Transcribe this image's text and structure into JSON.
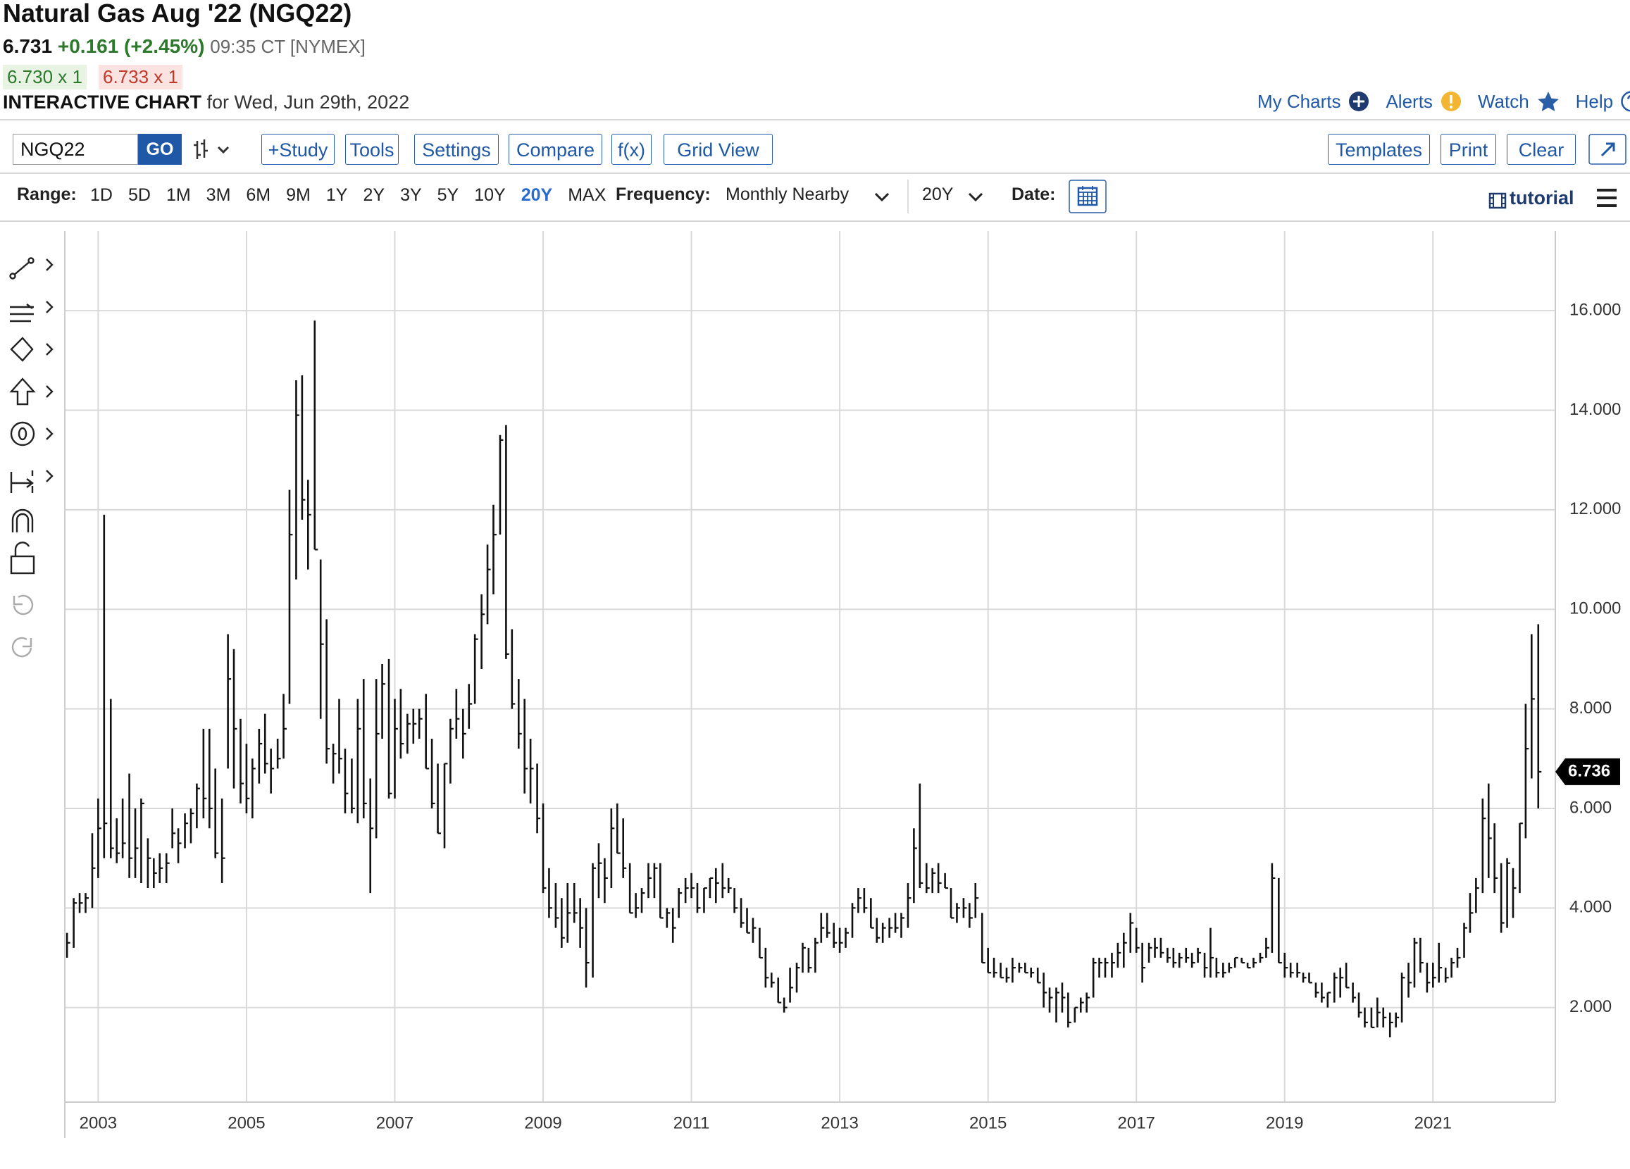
{
  "header": {
    "title": "Natural Gas Aug '22 (NGQ22)",
    "price": "6.731",
    "change": "+0.161 (+2.45%)",
    "time": "09:35 CT [NYMEX]",
    "bid": "6.730 x 1",
    "ask": "6.733 x 1",
    "chart_label": "INTERACTIVE CHART",
    "chart_date": "for Wed, Jun 29th, 2022"
  },
  "links": [
    "My Charts",
    "Alerts",
    "Watch",
    "Help"
  ],
  "toolbar": {
    "symbol": "NGQ22",
    "go": "GO",
    "buttons": [
      "+Study",
      "Tools",
      "Settings",
      "Compare",
      "f(x)",
      "Grid View"
    ],
    "right_buttons": [
      "Templates",
      "Print",
      "Clear"
    ]
  },
  "range_bar": {
    "range_label": "Range:",
    "ranges": [
      "1D",
      "5D",
      "1M",
      "3M",
      "6M",
      "9M",
      "1Y",
      "2Y",
      "3Y",
      "5Y",
      "10Y",
      "20Y",
      "MAX"
    ],
    "selected_range": "20Y",
    "frequency_label": "Frequency:",
    "frequency": "Monthly Nearby",
    "period": "20Y",
    "date_label": "Date:",
    "tutorial": "tutorial"
  },
  "chart_data": {
    "type": "ohlc",
    "color": "#111111",
    "grid": true,
    "xlim": [
      2002.55,
      2022.65
    ],
    "xticks": [
      2003,
      2005,
      2007,
      2009,
      2011,
      2013,
      2015,
      2017,
      2019,
      2021
    ],
    "ylim": [
      0.1,
      17.6
    ],
    "yticks": [
      {
        "value": 2,
        "label": "2.000"
      },
      {
        "value": 4,
        "label": "4.000"
      },
      {
        "value": 6,
        "label": "6.000"
      },
      {
        "value": 8,
        "label": "8.000"
      },
      {
        "value": 10,
        "label": "10.000"
      },
      {
        "value": 12,
        "label": "12.000"
      },
      {
        "value": 14,
        "label": "14.000"
      },
      {
        "value": 16,
        "label": "16.000"
      }
    ],
    "x": [
      2002.58,
      2002.67,
      2002.75,
      2002.83,
      2002.92,
      2003,
      2003.08,
      2003.17,
      2003.25,
      2003.33,
      2003.42,
      2003.5,
      2003.58,
      2003.67,
      2003.75,
      2003.83,
      2003.92,
      2004,
      2004.08,
      2004.17,
      2004.25,
      2004.33,
      2004.42,
      2004.5,
      2004.58,
      2004.67,
      2004.75,
      2004.83,
      2004.92,
      2005,
      2005.08,
      2005.17,
      2005.25,
      2005.33,
      2005.42,
      2005.5,
      2005.58,
      2005.67,
      2005.75,
      2005.83,
      2005.92,
      2006,
      2006.08,
      2006.17,
      2006.25,
      2006.33,
      2006.42,
      2006.5,
      2006.58,
      2006.67,
      2006.75,
      2006.83,
      2006.92,
      2007,
      2007.08,
      2007.17,
      2007.25,
      2007.33,
      2007.42,
      2007.5,
      2007.58,
      2007.67,
      2007.75,
      2007.83,
      2007.92,
      2008,
      2008.08,
      2008.17,
      2008.25,
      2008.33,
      2008.42,
      2008.5,
      2008.58,
      2008.67,
      2008.75,
      2008.83,
      2008.92,
      2009,
      2009.08,
      2009.17,
      2009.25,
      2009.33,
      2009.42,
      2009.5,
      2009.58,
      2009.67,
      2009.75,
      2009.83,
      2009.92,
      2010,
      2010.08,
      2010.17,
      2010.25,
      2010.33,
      2010.42,
      2010.5,
      2010.58,
      2010.67,
      2010.75,
      2010.83,
      2010.92,
      2011,
      2011.08,
      2011.17,
      2011.25,
      2011.33,
      2011.42,
      2011.5,
      2011.58,
      2011.67,
      2011.75,
      2011.83,
      2011.92,
      2012,
      2012.08,
      2012.17,
      2012.25,
      2012.33,
      2012.42,
      2012.5,
      2012.58,
      2012.67,
      2012.75,
      2012.83,
      2012.92,
      2013,
      2013.08,
      2013.17,
      2013.25,
      2013.33,
      2013.42,
      2013.5,
      2013.58,
      2013.67,
      2013.75,
      2013.83,
      2013.92,
      2014,
      2014.08,
      2014.17,
      2014.25,
      2014.33,
      2014.42,
      2014.5,
      2014.58,
      2014.67,
      2014.75,
      2014.83,
      2014.92,
      2015,
      2015.08,
      2015.17,
      2015.25,
      2015.33,
      2015.42,
      2015.5,
      2015.58,
      2015.67,
      2015.75,
      2015.83,
      2015.92,
      2016,
      2016.08,
      2016.17,
      2016.25,
      2016.33,
      2016.42,
      2016.5,
      2016.58,
      2016.67,
      2016.75,
      2016.83,
      2016.92,
      2017,
      2017.08,
      2017.17,
      2017.25,
      2017.33,
      2017.42,
      2017.5,
      2017.58,
      2017.67,
      2017.75,
      2017.83,
      2017.92,
      2018,
      2018.08,
      2018.17,
      2018.25,
      2018.33,
      2018.42,
      2018.5,
      2018.58,
      2018.67,
      2018.75,
      2018.83,
      2018.92,
      2019,
      2019.08,
      2019.17,
      2019.25,
      2019.33,
      2019.42,
      2019.5,
      2019.58,
      2019.67,
      2019.75,
      2019.83,
      2019.92,
      2020,
      2020.08,
      2020.17,
      2020.25,
      2020.33,
      2020.42,
      2020.5,
      2020.58,
      2020.67,
      2020.75,
      2020.83,
      2020.92,
      2021,
      2021.08,
      2021.17,
      2021.25,
      2021.33,
      2021.42,
      2021.5,
      2021.58,
      2021.67,
      2021.75,
      2021.83,
      2021.92,
      2022,
      2022.08,
      2022.17,
      2022.25,
      2022.33,
      2022.42
    ],
    "high": [
      3.5,
      4.2,
      4.3,
      4.3,
      5.5,
      6.2,
      11.9,
      8.2,
      5.8,
      6.2,
      6.7,
      6.0,
      6.2,
      5.4,
      5.0,
      5.1,
      5.1,
      6.0,
      5.6,
      5.9,
      6.0,
      6.5,
      7.6,
      7.6,
      6.8,
      6.2,
      9.5,
      9.2,
      7.8,
      7.3,
      7.0,
      7.6,
      7.9,
      7.2,
      7.4,
      8.3,
      12.4,
      14.6,
      14.7,
      12.6,
      15.8,
      11.0,
      9.8,
      7.3,
      8.2,
      7.2,
      7.0,
      8.2,
      8.6,
      6.6,
      8.6,
      8.9,
      9.0,
      8.2,
      8.4,
      7.9,
      8.0,
      8.0,
      8.3,
      7.4,
      6.9,
      6.9,
      7.8,
      8.4,
      8.0,
      8.5,
      9.5,
      10.3,
      11.3,
      12.1,
      13.5,
      13.7,
      9.6,
      8.6,
      8.2,
      7.4,
      6.9,
      6.1,
      4.8,
      4.5,
      4.2,
      4.5,
      4.5,
      4.2,
      4.0,
      4.9,
      5.3,
      5.0,
      6.0,
      6.1,
      5.8,
      4.9,
      4.3,
      4.4,
      4.9,
      4.9,
      4.9,
      4.0,
      4.0,
      4.4,
      4.6,
      4.7,
      4.5,
      4.4,
      4.6,
      4.8,
      4.9,
      4.6,
      4.4,
      4.2,
      4.0,
      3.8,
      3.6,
      3.2,
      2.7,
      2.6,
      2.2,
      2.8,
      2.9,
      3.3,
      3.2,
      3.4,
      3.9,
      3.9,
      3.7,
      3.6,
      3.6,
      4.1,
      4.4,
      4.4,
      4.2,
      3.8,
      3.7,
      3.8,
      3.9,
      3.9,
      4.5,
      5.6,
      6.5,
      4.9,
      4.8,
      4.9,
      4.7,
      4.4,
      4.1,
      4.2,
      4.1,
      4.5,
      3.9,
      3.2,
      3.0,
      2.9,
      2.8,
      3.0,
      2.9,
      2.9,
      2.8,
      2.8,
      2.7,
      2.4,
      2.4,
      2.5,
      2.3,
      2.0,
      2.2,
      2.3,
      3.0,
      3.0,
      3.0,
      3.1,
      3.3,
      3.5,
      3.9,
      3.6,
      3.3,
      3.3,
      3.4,
      3.4,
      3.2,
      3.2,
      3.1,
      3.2,
      3.1,
      3.2,
      3.1,
      3.6,
      3.0,
      2.9,
      2.9,
      3.0,
      3.0,
      2.9,
      3.0,
      3.1,
      3.4,
      4.9,
      4.6,
      3.1,
      2.9,
      2.9,
      2.7,
      2.7,
      2.5,
      2.5,
      2.3,
      2.7,
      2.8,
      2.9,
      2.5,
      2.3,
      2.0,
      2.0,
      2.2,
      2.0,
      1.9,
      1.9,
      2.7,
      2.9,
      3.4,
      3.4,
      2.9,
      2.9,
      3.3,
      2.8,
      3.0,
      3.2,
      3.7,
      4.3,
      4.6,
      6.2,
      6.5,
      5.7,
      4.9,
      5.0,
      4.8,
      5.7,
      8.1,
      9.5,
      9.7
    ],
    "low": [
      3.0,
      3.2,
      3.9,
      3.9,
      4.0,
      4.6,
      5.0,
      5.0,
      4.9,
      5.0,
      4.6,
      4.6,
      4.5,
      4.4,
      4.4,
      4.5,
      4.5,
      5.2,
      4.9,
      5.2,
      5.3,
      5.6,
      5.8,
      5.6,
      5.0,
      4.5,
      6.8,
      6.4,
      6.1,
      5.9,
      5.8,
      6.5,
      6.7,
      6.3,
      6.8,
      7.0,
      8.1,
      10.6,
      11.8,
      10.8,
      11.2,
      7.8,
      6.9,
      6.5,
      6.7,
      5.9,
      5.9,
      5.7,
      5.8,
      4.3,
      5.4,
      7.4,
      6.2,
      6.2,
      7.0,
      7.1,
      7.3,
      7.4,
      6.8,
      6.0,
      5.5,
      5.2,
      6.5,
      7.4,
      7.0,
      7.6,
      8.1,
      8.8,
      9.7,
      10.3,
      11.5,
      9.0,
      8.0,
      7.2,
      6.3,
      6.1,
      5.5,
      4.3,
      3.8,
      3.6,
      3.2,
      3.3,
      3.7,
      3.2,
      2.4,
      2.6,
      4.2,
      4.1,
      4.4,
      5.1,
      4.6,
      3.9,
      3.8,
      3.9,
      4.2,
      4.2,
      3.8,
      3.6,
      3.3,
      3.8,
      4.1,
      4.2,
      3.9,
      3.9,
      4.2,
      4.1,
      4.2,
      4.3,
      3.9,
      3.6,
      3.5,
      3.3,
      3.0,
      2.4,
      2.4,
      2.1,
      1.9,
      2.1,
      2.3,
      2.7,
      2.7,
      2.7,
      3.3,
      3.4,
      3.2,
      3.1,
      3.2,
      3.4,
      3.9,
      3.9,
      3.6,
      3.3,
      3.3,
      3.4,
      3.5,
      3.4,
      3.6,
      4.1,
      4.4,
      4.3,
      4.3,
      4.3,
      4.4,
      3.8,
      3.7,
      3.8,
      3.6,
      3.8,
      2.9,
      2.7,
      2.6,
      2.6,
      2.5,
      2.5,
      2.7,
      2.7,
      2.6,
      2.5,
      2.0,
      1.9,
      1.7,
      1.9,
      1.6,
      1.7,
      1.9,
      1.9,
      2.2,
      2.6,
      2.6,
      2.6,
      2.8,
      2.8,
      3.1,
      3.1,
      2.5,
      2.9,
      3.0,
      3.0,
      2.9,
      2.8,
      2.8,
      2.9,
      2.8,
      2.9,
      2.6,
      2.6,
      2.6,
      2.6,
      2.7,
      2.8,
      2.9,
      2.8,
      2.8,
      2.9,
      3.0,
      3.1,
      2.9,
      2.6,
      2.6,
      2.6,
      2.5,
      2.5,
      2.2,
      2.1,
      2.0,
      2.1,
      2.2,
      2.4,
      2.1,
      1.8,
      1.6,
      1.6,
      1.6,
      1.6,
      1.4,
      1.6,
      1.7,
      2.2,
      2.4,
      2.7,
      2.3,
      2.4,
      2.5,
      2.5,
      2.6,
      2.8,
      3.0,
      3.5,
      3.9,
      4.3,
      4.6,
      4.3,
      3.5,
      3.6,
      3.8,
      4.3,
      5.4,
      6.6,
      6.0
    ],
    "close": [
      3.3,
      4.1,
      4.1,
      4.2,
      4.8,
      5.6,
      5.7,
      5.2,
      5.1,
      5.3,
      5.0,
      5.2,
      6.1,
      5.0,
      4.7,
      4.8,
      4.9,
      5.5,
      5.3,
      5.7,
      5.9,
      6.4,
      6.2,
      6.0,
      5.1,
      5.0,
      8.6,
      7.6,
      6.5,
      6.2,
      6.8,
      7.3,
      6.9,
      6.8,
      7.0,
      7.6,
      11.5,
      13.9,
      12.2,
      11.9,
      11.2,
      9.3,
      7.2,
      7.1,
      7.0,
      6.3,
      6.0,
      7.6,
      6.1,
      5.6,
      7.5,
      8.5,
      6.3,
      7.6,
      7.3,
      7.7,
      7.7,
      7.8,
      6.8,
      6.1,
      5.5,
      6.9,
      7.6,
      7.8,
      7.5,
      8.1,
      9.4,
      9.9,
      10.8,
      11.5,
      13.4,
      9.1,
      8.1,
      7.5,
      6.8,
      6.8,
      5.8,
      4.4,
      4.0,
      3.8,
      3.4,
      3.9,
      3.9,
      3.6,
      2.9,
      4.8,
      4.9,
      4.6,
      5.6,
      5.1,
      4.8,
      3.9,
      4.0,
      4.3,
      4.6,
      4.8,
      3.8,
      3.9,
      3.6,
      4.3,
      4.4,
      4.4,
      4.0,
      4.4,
      4.6,
      4.5,
      4.4,
      4.4,
      4.0,
      3.7,
      3.5,
      3.6,
      3.0,
      2.6,
      2.5,
      2.1,
      2.0,
      2.4,
      2.8,
      3.2,
      2.8,
      3.3,
      3.6,
      3.5,
      3.3,
      3.3,
      3.5,
      4.0,
      4.2,
      4.0,
      3.6,
      3.4,
      3.6,
      3.6,
      3.6,
      3.8,
      4.2,
      5.2,
      4.5,
      4.4,
      4.7,
      4.5,
      4.4,
      3.8,
      4.0,
      4.0,
      3.8,
      4.2,
      2.9,
      2.7,
      2.7,
      2.6,
      2.6,
      2.8,
      2.8,
      2.7,
      2.7,
      2.5,
      2.3,
      2.2,
      2.3,
      2.2,
      1.7,
      2.0,
      2.1,
      2.2,
      2.9,
      2.9,
      2.9,
      2.9,
      3.1,
      3.3,
      3.7,
      3.2,
      2.8,
      3.2,
      3.2,
      3.1,
      3.0,
      2.9,
      3.0,
      3.0,
      2.9,
      3.1,
      2.8,
      3.0,
      2.7,
      2.7,
      2.8,
      3.0,
      2.9,
      2.8,
      2.9,
      3.0,
      3.2,
      4.6,
      2.9,
      2.8,
      2.7,
      2.7,
      2.6,
      2.5,
      2.3,
      2.2,
      2.3,
      2.6,
      2.6,
      2.4,
      2.2,
      1.9,
      1.7,
      1.6,
      1.9,
      1.8,
      1.7,
      1.8,
      2.6,
      2.5,
      3.3,
      2.9,
      2.5,
      2.6,
      2.8,
      2.6,
      2.9,
      3.0,
      3.6,
      3.9,
      4.4,
      5.8,
      5.4,
      4.6,
      3.7,
      4.9,
      4.4,
      5.7,
      7.2,
      8.2,
      6.736
    ]
  }
}
